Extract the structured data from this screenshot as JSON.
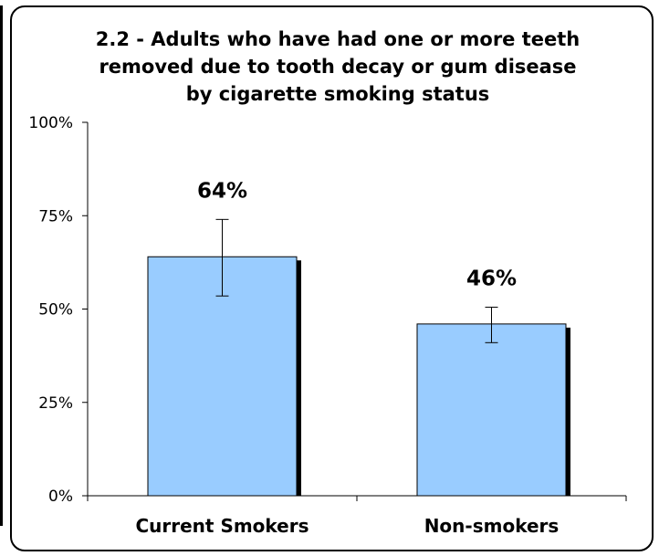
{
  "chart_data": {
    "type": "bar",
    "title_lines": [
      "2.2 - Adults who have had one or more teeth",
      "removed due to tooth decay or gum disease",
      "by cigarette smoking status"
    ],
    "categories": [
      "Current Smokers",
      "Non-smokers"
    ],
    "values": [
      64,
      46
    ],
    "data_labels": [
      "64%",
      "46%"
    ],
    "error_bars": [
      {
        "low": 53.5,
        "high": 74
      },
      {
        "low": 41,
        "high": 50.5
      }
    ],
    "y_ticks": [
      "0%",
      "25%",
      "50%",
      "75%",
      "100%"
    ],
    "ylim": [
      0,
      100
    ],
    "grid": false,
    "colors": {
      "bar": "#99ccff",
      "bar_shadow": "#000000",
      "axis": "#000000"
    }
  }
}
